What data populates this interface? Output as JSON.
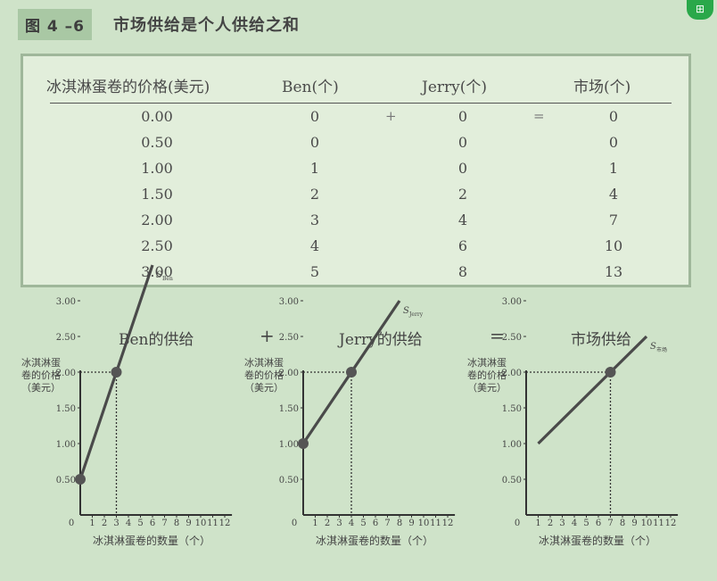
{
  "header": {
    "figure_number": "图 4 –6",
    "title": "市场供给是个人供给之和"
  },
  "table": {
    "columns": [
      "冰淇淋蛋卷的价格(美元)",
      "Ben(个)",
      "Jerry(个)",
      "市场(个)"
    ],
    "operators": [
      "+",
      "="
    ],
    "rows": [
      {
        "price": "0.00",
        "ben": "0",
        "jerry": "0",
        "market": "0"
      },
      {
        "price": "0.50",
        "ben": "0",
        "jerry": "0",
        "market": "0"
      },
      {
        "price": "1.00",
        "ben": "1",
        "jerry": "0",
        "market": "1"
      },
      {
        "price": "1.50",
        "ben": "2",
        "jerry": "2",
        "market": "4"
      },
      {
        "price": "2.00",
        "ben": "3",
        "jerry": "4",
        "market": "7"
      },
      {
        "price": "2.50",
        "ben": "4",
        "jerry": "6",
        "market": "10"
      },
      {
        "price": "3.00",
        "ben": "5",
        "jerry": "8",
        "market": "13"
      }
    ]
  },
  "graphs": {
    "op_plus": "+",
    "op_equals": "=",
    "y_label_lines": [
      "冰淇淋蛋",
      "卷的价格",
      "（美元）"
    ],
    "x_label": "冰淇淋蛋卷的数量（个）"
  },
  "chart_data": [
    {
      "type": "line",
      "title": "Ben的供给",
      "curve_label": "S",
      "curve_sub": "Ben",
      "xlabel": "冰淇淋蛋卷的数量（个）",
      "ylabel": "冰淇淋蛋卷的价格（美元）",
      "xlim": [
        0,
        12
      ],
      "ylim": [
        0,
        3
      ],
      "x_ticks": [
        1,
        2,
        3,
        4,
        5,
        6,
        7,
        8,
        9,
        10,
        11,
        12
      ],
      "y_ticks": [
        "0.50",
        "1.00",
        "1.50",
        "2.00",
        "2.50",
        "3.00"
      ],
      "series": [
        {
          "x": [
            0,
            6
          ],
          "y": [
            0.5,
            3.5
          ]
        }
      ],
      "points": [
        {
          "x": 0,
          "y": 0.5
        },
        {
          "x": 3,
          "y": 2.0
        }
      ],
      "guide": {
        "x": 3,
        "y": 2.0
      }
    },
    {
      "type": "line",
      "title": "Jerry的供给",
      "curve_label": "S",
      "curve_sub": "Jerry",
      "xlabel": "冰淇淋蛋卷的数量（个）",
      "ylabel": "冰淇淋蛋卷的价格（美元）",
      "xlim": [
        0,
        12
      ],
      "ylim": [
        0,
        3
      ],
      "x_ticks": [
        1,
        2,
        3,
        4,
        5,
        6,
        7,
        8,
        9,
        10,
        11,
        12
      ],
      "y_ticks": [
        "0.50",
        "1.00",
        "1.50",
        "2.00",
        "2.50",
        "3.00"
      ],
      "series": [
        {
          "x": [
            0,
            8
          ],
          "y": [
            1.0,
            3.0
          ]
        }
      ],
      "points": [
        {
          "x": 0,
          "y": 1.0
        },
        {
          "x": 4,
          "y": 2.0
        }
      ],
      "guide": {
        "x": 4,
        "y": 2.0
      }
    },
    {
      "type": "line",
      "title": "市场供给",
      "curve_label": "S",
      "curve_sub": "市场",
      "xlabel": "冰淇淋蛋卷的数量（个）",
      "ylabel": "冰淇淋蛋卷的价格（美元）",
      "xlim": [
        0,
        12
      ],
      "ylim": [
        0,
        3
      ],
      "x_ticks": [
        1,
        2,
        3,
        4,
        5,
        6,
        7,
        8,
        9,
        10,
        11,
        12
      ],
      "y_ticks": [
        "0.50",
        "1.00",
        "1.50",
        "2.00",
        "2.50",
        "3.00"
      ],
      "series": [
        {
          "x": [
            1,
            10
          ],
          "y": [
            1.0,
            2.5
          ]
        }
      ],
      "points": [
        {
          "x": 7,
          "y": 2.0
        }
      ],
      "guide": {
        "x": 7,
        "y": 2.0
      }
    }
  ]
}
